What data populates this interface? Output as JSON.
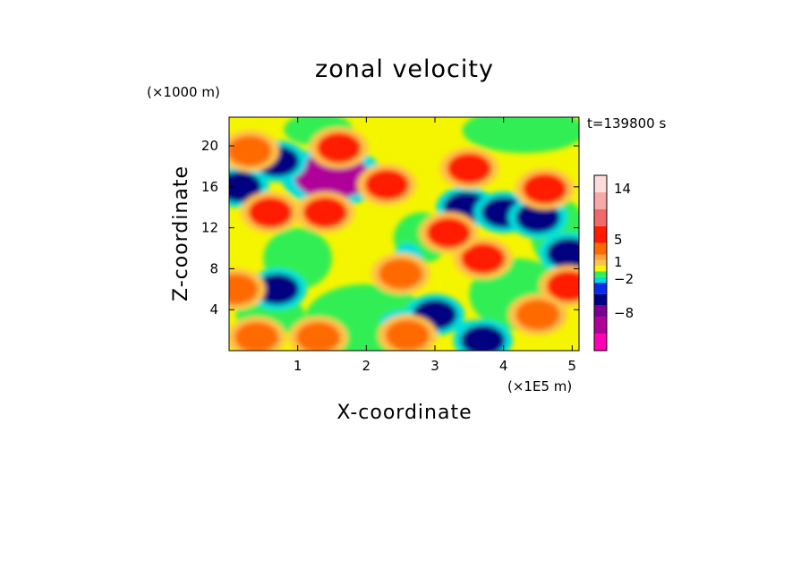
{
  "chart_data": {
    "type": "heatmap",
    "title": "zonal velocity",
    "xlabel": "X-coordinate",
    "ylabel": "Z-coordinate",
    "x_unit": "(×1E5 m)",
    "y_unit": "(×1000 m)",
    "time_label": "t=139800 s",
    "xlim": [
      0,
      5.1
    ],
    "ylim": [
      0,
      22.8
    ],
    "x_ticks": [
      1,
      2,
      3,
      4,
      5
    ],
    "y_ticks": [
      4,
      8,
      12,
      16,
      20
    ],
    "colorbar": {
      "tick_labels": [
        {
          "value": 14,
          "label": "14"
        },
        {
          "value": 5,
          "label": "5"
        },
        {
          "value": 1,
          "label": "1"
        },
        {
          "value": -2,
          "label": "−2"
        },
        {
          "value": -8,
          "label": "−8"
        }
      ],
      "levels": [
        {
          "min": 14,
          "max": 17,
          "color": "#ffdcdc"
        },
        {
          "min": 11,
          "max": 14,
          "color": "#f7a8a8"
        },
        {
          "min": 8,
          "max": 11,
          "color": "#f06a6a"
        },
        {
          "min": 5,
          "max": 8,
          "color": "#ff1a00"
        },
        {
          "min": 3,
          "max": 5,
          "color": "#ff6a00"
        },
        {
          "min": 2,
          "max": 3,
          "color": "#ff9e3a"
        },
        {
          "min": 1,
          "max": 2,
          "color": "#ffc24a"
        },
        {
          "min": 0,
          "max": 1,
          "color": "#f5f500"
        },
        {
          "min": -1,
          "max": 0,
          "color": "#33ee55"
        },
        {
          "min": -2,
          "max": -1,
          "color": "#00dddd"
        },
        {
          "min": -4,
          "max": -2,
          "color": "#0a2ce8"
        },
        {
          "min": -6,
          "max": -4,
          "color": "#000080"
        },
        {
          "min": -8,
          "max": -6,
          "color": "#7a0090"
        },
        {
          "min": -11,
          "max": -8,
          "color": "#b0009a"
        },
        {
          "min": -14,
          "max": -11,
          "color": "#ff00b4"
        }
      ]
    },
    "features": [
      {
        "x": 1.5,
        "z": 17.0,
        "value": -10
      },
      {
        "x": 0.7,
        "z": 6.0,
        "value": -5
      },
      {
        "x": 0.7,
        "z": 18.5,
        "value": -5
      },
      {
        "x": 0.15,
        "z": 16.0,
        "value": -5
      },
      {
        "x": 3.45,
        "z": 14.0,
        "value": -5
      },
      {
        "x": 4.0,
        "z": 13.5,
        "value": -5
      },
      {
        "x": 4.5,
        "z": 13.0,
        "value": -5
      },
      {
        "x": 4.95,
        "z": 9.5,
        "value": -5
      },
      {
        "x": 3.0,
        "z": 3.5,
        "value": -5
      },
      {
        "x": 3.7,
        "z": 1.0,
        "value": -5
      },
      {
        "x": 1.6,
        "z": 19.8,
        "value": 5
      },
      {
        "x": 0.6,
        "z": 13.5,
        "value": 5
      },
      {
        "x": 1.4,
        "z": 13.5,
        "value": 5
      },
      {
        "x": 2.3,
        "z": 16.2,
        "value": 5
      },
      {
        "x": 3.5,
        "z": 17.8,
        "value": 5
      },
      {
        "x": 4.6,
        "z": 15.8,
        "value": 5
      },
      {
        "x": 3.7,
        "z": 9.0,
        "value": 5
      },
      {
        "x": 3.2,
        "z": 11.5,
        "value": 5
      },
      {
        "x": 4.95,
        "z": 6.3,
        "value": 5
      },
      {
        "x": 0.4,
        "z": 1.3,
        "value": 3
      },
      {
        "x": 1.3,
        "z": 1.3,
        "value": 3
      },
      {
        "x": 2.6,
        "z": 1.5,
        "value": 3
      },
      {
        "x": 4.5,
        "z": 3.5,
        "value": 3
      },
      {
        "x": 0.1,
        "z": 6.0,
        "value": 3
      },
      {
        "x": 0.3,
        "z": 19.5,
        "value": 3
      },
      {
        "x": 2.5,
        "z": 7.5,
        "value": 3
      }
    ]
  }
}
